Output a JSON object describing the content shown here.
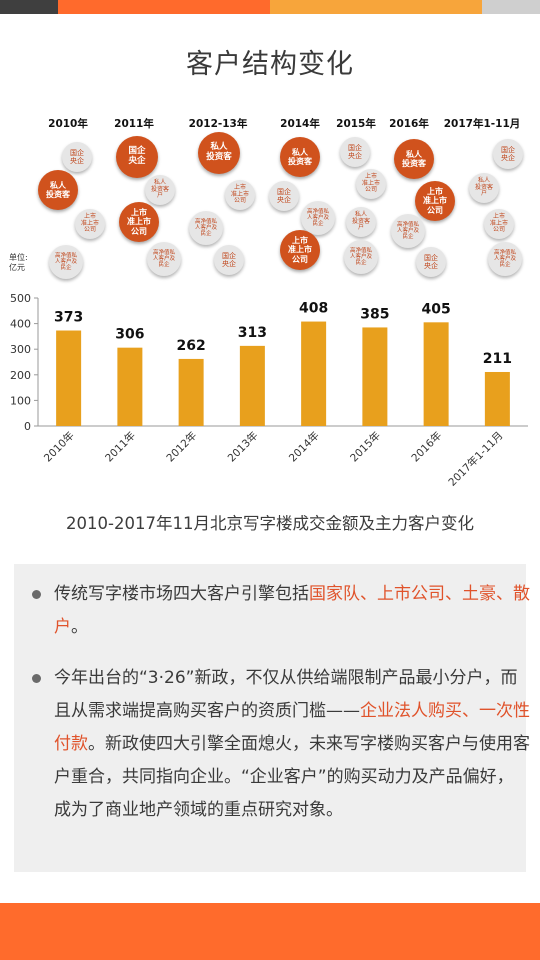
{
  "colors": {
    "topbar": [
      "#3f3f3f",
      "#ff6a2c",
      "#f7a53b",
      "#cfcfcf"
    ],
    "bar": "#e8a01d",
    "accent": "#e0532b",
    "bottombar": "#ff6b2c"
  },
  "title": "客户结构变化",
  "years": [
    "2010年",
    "2011年",
    "2012-13年",
    "2014年",
    "2015年",
    "2016年",
    "2017年1-11月"
  ],
  "bubbles": [
    {
      "text": "国企\n央企",
      "type": "small"
    },
    {
      "text": "私人\n投资客",
      "type": "big"
    },
    {
      "text": "上市\n准上市\n公司",
      "type": "small"
    },
    {
      "text": "高净值私\n人客户及\n民企",
      "type": "small"
    },
    {
      "text": "国企\n央企",
      "type": "big"
    },
    {
      "text": "私人\n投资客\n户",
      "type": "small"
    },
    {
      "text": "上市\n准上市\n公司",
      "type": "big"
    },
    {
      "text": "高净值私\n人客户及\n民企",
      "type": "small"
    },
    {
      "text": "私人\n投资客",
      "type": "big"
    },
    {
      "text": "上市\n准上市\n公司",
      "type": "small"
    },
    {
      "text": "高净值私\n人客户及\n民企",
      "type": "small"
    },
    {
      "text": "国企\n央企",
      "type": "small"
    },
    {
      "text": "私人\n投资客",
      "type": "big"
    },
    {
      "text": "国企\n央企",
      "type": "small"
    },
    {
      "text": "高净值私\n人客户及\n民企",
      "type": "small"
    },
    {
      "text": "上市\n准上市\n公司",
      "type": "big"
    },
    {
      "text": "国企\n央企",
      "type": "small"
    },
    {
      "text": "上市\n准上市\n公司",
      "type": "small"
    },
    {
      "text": "私人\n投资客\n户",
      "type": "small"
    },
    {
      "text": "高净值私\n人客户及\n民企",
      "type": "small"
    },
    {
      "text": "私人\n投资客",
      "type": "big"
    },
    {
      "text": "上市\n准上市\n公司",
      "type": "big"
    },
    {
      "text": "高净值私\n人客户及\n民企",
      "type": "small"
    },
    {
      "text": "国企\n央企",
      "type": "small"
    },
    {
      "text": "国企\n央企",
      "type": "small"
    },
    {
      "text": "私人\n投资客\n户",
      "type": "small"
    },
    {
      "text": "上市\n准上市\n公司",
      "type": "small"
    },
    {
      "text": "高净值私\n人客户及\n民企",
      "type": "small"
    }
  ],
  "unit_label": "单位:\n亿元",
  "chart_data": {
    "type": "bar",
    "categories": [
      "2010年",
      "2011年",
      "2012年",
      "2013年",
      "2014年",
      "2015年",
      "2016年",
      "2017年1-11月"
    ],
    "values": [
      373,
      306,
      262,
      313,
      408,
      385,
      405,
      211
    ],
    "ylim": [
      0,
      500
    ],
    "yticks": [
      0,
      100,
      200,
      300,
      400,
      500
    ],
    "grid": false
  },
  "caption": "2010-2017年11月北京写字楼成交金额及主力客户变化",
  "paragraphs": [
    {
      "pre": "传统写字楼市场四大客户引擎包括",
      "hl": "国家队、上市公司、土豪、散户",
      "post": "。"
    },
    {
      "pre": "今年出台的“3·26”新政，不仅从供给端限制产品最小分户，而且从需求端提高购买客户的资质门槛——",
      "hl": "企业法人购买、一次性付款",
      "post": "。新政使四大引擎全面熄火，未来写字楼购买客户与使用客户重合，共同指向企业。“企业客户”的购买动力及产品偏好，成为了商业地产领域的重点研究对象。"
    }
  ]
}
